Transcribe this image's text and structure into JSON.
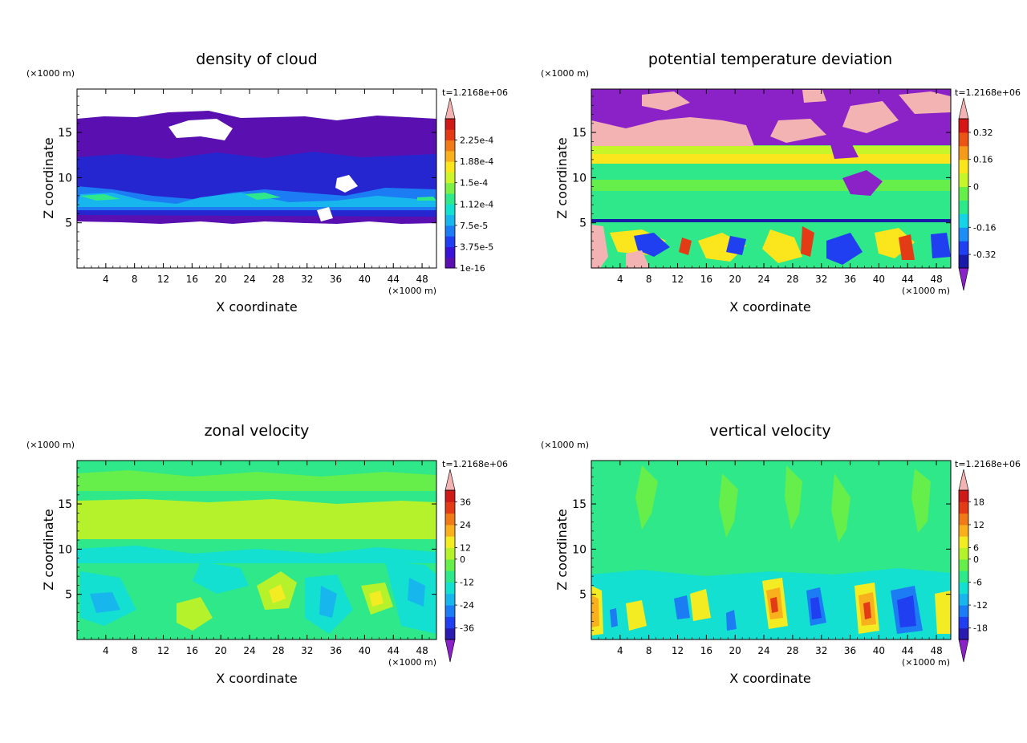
{
  "chart_data": [
    {
      "type": "heatmap",
      "title": "density of cloud",
      "xlabel": "X coordinate",
      "ylabel": "Z coordinate",
      "x_unit": "(×1000 m)",
      "y_unit": "(×1000 m)",
      "time_label": "t=1.2168e+06",
      "xlim": [
        0,
        50
      ],
      "ylim": [
        0,
        19.8
      ],
      "x_ticks": [
        4,
        8,
        12,
        16,
        20,
        24,
        28,
        32,
        36,
        40,
        44,
        48
      ],
      "y_ticks": [
        5,
        10,
        15
      ],
      "colorbar": {
        "levels": [
          "1e-16",
          "3.75e-5",
          "7.5e-5",
          "1.12e-4",
          "1.5e-4",
          "1.88e-4",
          "2.25e-4"
        ],
        "colors": [
          "#5a0fb0",
          "#3a14d6",
          "#1f3ff0",
          "#1c7cf3",
          "#17b7ee",
          "#13e0d0",
          "#2ee88a",
          "#7cf046",
          "#cdf52a",
          "#fbe61e",
          "#f8b11c",
          "#f07a18",
          "#e33b16",
          "#cf1a1a"
        ],
        "over_color": "#f4b3b3",
        "under_color": null
      }
    },
    {
      "type": "heatmap",
      "title": "potential temperature deviation",
      "xlabel": "X coordinate",
      "ylabel": "Z coordinate",
      "x_unit": "(×1000 m)",
      "y_unit": "(×1000 m)",
      "time_label": "t=1.2168e+06",
      "xlim": [
        0,
        50
      ],
      "ylim": [
        0,
        19.8
      ],
      "x_ticks": [
        4,
        8,
        12,
        16,
        20,
        24,
        28,
        32,
        36,
        40,
        44,
        48
      ],
      "y_ticks": [
        5,
        10,
        15
      ],
      "colorbar": {
        "levels": [
          "-0.32",
          "-0.16",
          "0",
          "0.16",
          "0.32"
        ],
        "colors": [
          "#1a1aa8",
          "#1f3ff0",
          "#1c8ef5",
          "#14d4e6",
          "#2ee88a",
          "#66ee4a",
          "#c6f52a",
          "#fbe61e",
          "#f59a1a",
          "#ea5516",
          "#d61616"
        ],
        "over_color": "#f4b3b3",
        "under_color": "#8a22c8"
      }
    },
    {
      "type": "heatmap",
      "title": "zonal velocity",
      "xlabel": "X coordinate",
      "ylabel": "Z coordinate",
      "x_unit": "(×1000 m)",
      "y_unit": "(×1000 m)",
      "time_label": "t=1.2168e+06",
      "xlim": [
        0,
        50
      ],
      "ylim": [
        0,
        19.8
      ],
      "x_ticks": [
        4,
        8,
        12,
        16,
        20,
        24,
        28,
        32,
        36,
        40,
        44,
        48
      ],
      "y_ticks": [
        5,
        10,
        15
      ],
      "colorbar": {
        "levels": [
          "-36",
          "-24",
          "-12",
          "0",
          "12",
          "24",
          "36"
        ],
        "colors": [
          "#2a1bb0",
          "#1f3ff0",
          "#1c7cf3",
          "#17b7ee",
          "#13e0d0",
          "#2ee88a",
          "#66ee4a",
          "#b5f22c",
          "#f3ec22",
          "#f8b11c",
          "#f07a18",
          "#e33b16",
          "#cf1a1a"
        ],
        "over_color": "#f4b3b3",
        "under_color": "#8a22c8"
      }
    },
    {
      "type": "heatmap",
      "title": "vertical velocity",
      "xlabel": "X coordinate",
      "ylabel": "Z coordinate",
      "x_unit": "(×1000 m)",
      "y_unit": "(×1000 m)",
      "time_label": "t=1.2168e+06",
      "xlim": [
        0,
        50
      ],
      "ylim": [
        0,
        19.8
      ],
      "x_ticks": [
        4,
        8,
        12,
        16,
        20,
        24,
        28,
        32,
        36,
        40,
        44,
        48
      ],
      "y_ticks": [
        5,
        10,
        15
      ],
      "colorbar": {
        "levels": [
          "-18",
          "-12",
          "-6",
          "0",
          "6",
          "12",
          "18"
        ],
        "colors": [
          "#2a1bb0",
          "#1f3ff0",
          "#1c7cf3",
          "#17b7ee",
          "#13e0d0",
          "#2ee88a",
          "#66ee4a",
          "#b5f22c",
          "#f3ec22",
          "#f8b11c",
          "#f07a18",
          "#e33b16",
          "#cf1a1a"
        ],
        "over_color": "#f4b3b3",
        "under_color": "#8a22c8"
      }
    }
  ]
}
